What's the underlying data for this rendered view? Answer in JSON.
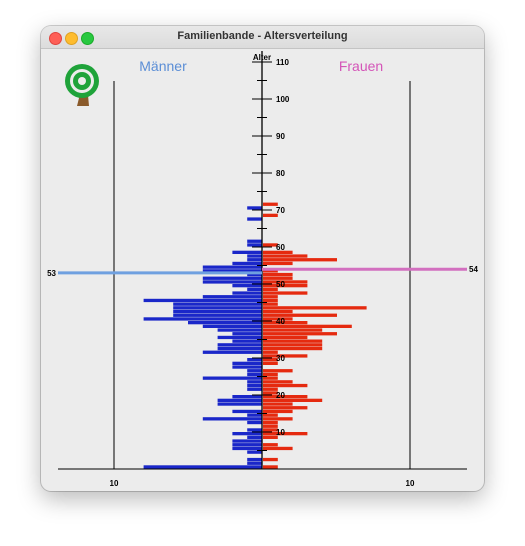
{
  "window": {
    "title": "Familienbande - Altersverteilung"
  },
  "colors": {
    "male": "#1a27c9",
    "female": "#e52a0f",
    "male_marker": "#6fa0e0",
    "female_marker": "#d26fbf",
    "male_header": "#5b8ed6",
    "female_header": "#d455b8"
  },
  "chart_data": {
    "type": "bar",
    "orientation": "population-pyramid",
    "axis_title": "Alter",
    "y_ticks": [
      10,
      20,
      30,
      40,
      50,
      60,
      70,
      80,
      90,
      100,
      110
    ],
    "x_ticks": [
      10,
      10
    ],
    "series": [
      {
        "name": "Männer",
        "values": [
          8,
          1,
          1,
          0,
          1,
          2,
          2,
          2,
          1,
          2,
          1,
          0,
          1,
          4,
          1,
          2,
          0,
          3,
          3,
          2,
          0,
          1,
          1,
          1,
          4,
          1,
          1,
          2,
          2,
          1,
          0,
          4,
          3,
          3,
          2,
          3,
          2,
          3,
          4,
          5,
          8,
          6,
          6,
          6,
          6,
          8,
          4,
          2,
          1,
          2,
          4,
          4,
          1,
          4,
          4,
          2,
          1,
          1,
          2,
          0,
          1,
          1,
          0,
          0,
          0,
          0,
          0,
          1,
          0,
          0,
          1
        ]
      },
      {
        "name": "Frauen",
        "values": [
          1,
          0,
          1,
          0,
          0,
          2,
          1,
          0,
          1,
          3,
          1,
          1,
          1,
          2,
          1,
          2,
          3,
          2,
          4,
          3,
          1,
          1,
          3,
          2,
          1,
          1,
          2,
          0,
          1,
          1,
          3,
          1,
          4,
          4,
          4,
          3,
          5,
          4,
          6,
          3,
          2,
          5,
          2,
          7,
          1,
          1,
          1,
          3,
          1,
          3,
          3,
          2,
          2,
          1,
          0,
          2,
          5,
          3,
          2,
          0,
          1,
          0,
          0,
          0,
          0,
          0,
          0,
          0,
          1,
          0,
          0,
          1
        ]
      }
    ],
    "markers": [
      {
        "series": "Männer",
        "age": 53,
        "label": "53"
      },
      {
        "series": "Frauen",
        "age": 54,
        "label": "54"
      }
    ]
  }
}
